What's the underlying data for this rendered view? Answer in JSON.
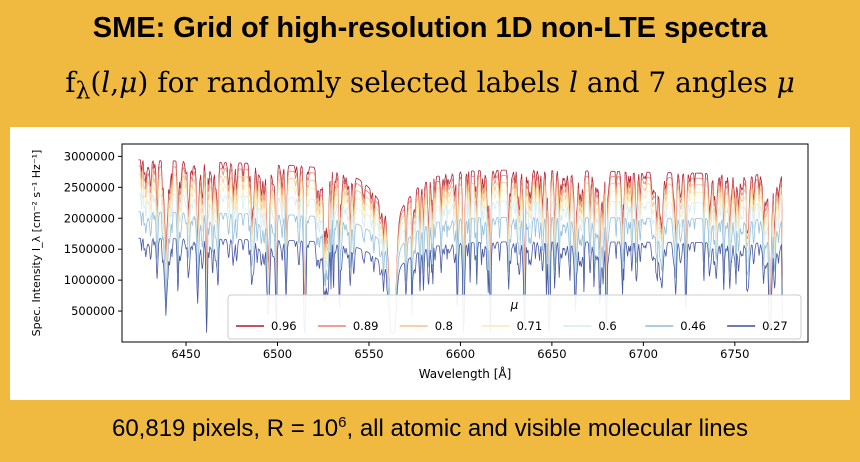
{
  "header": {
    "title": "SME: Grid of high-resolution 1D non-LTE spectra",
    "subtitle_f": "f",
    "subtitle_lambda": "λ",
    "subtitle_paren_open": "(",
    "subtitle_l": "l",
    "subtitle_comma": ",",
    "subtitle_mu": "μ",
    "subtitle_paren_close": ")",
    "subtitle_text1": " for randomly selected labels ",
    "subtitle_text2": " and 7 angles "
  },
  "footer": {
    "text_a": "60,819 pixels,  R = 10",
    "exponent": "6",
    "text_b": ", all atomic and visible molecular lines"
  },
  "chart_data": {
    "type": "line",
    "title": "",
    "xlabel": "Wavelength [Å]",
    "ylabel": "Spec. Intensity I_λ [cm⁻² s⁻¹ Hz⁻¹]",
    "xlim": [
      6415,
      6790
    ],
    "ylim": [
      0,
      3200000
    ],
    "xticks": [
      6450,
      6500,
      6550,
      6600,
      6650,
      6700,
      6750
    ],
    "yticks": [
      500000,
      1000000,
      1500000,
      2000000,
      2500000,
      3000000
    ],
    "ytick_labels": [
      "500000",
      "1000000",
      "1500000",
      "2000000",
      "2500000",
      "3000000"
    ],
    "legend": {
      "title": "μ",
      "placement": "lower-center"
    },
    "h_alpha_center": 6563,
    "series": [
      {
        "name": "0.96",
        "color": "#b2182b",
        "continuum_start": 2950000,
        "continuum_end": 2700000
      },
      {
        "name": "0.89",
        "color": "#e8806b",
        "continuum_start": 2850000,
        "continuum_end": 2620000
      },
      {
        "name": "0.8",
        "color": "#f6c48a",
        "continuum_start": 2720000,
        "continuum_end": 2520000
      },
      {
        "name": "0.71",
        "color": "#fbe9b4",
        "continuum_start": 2580000,
        "continuum_end": 2400000
      },
      {
        "name": "0.6",
        "color": "#d6eaf0",
        "continuum_start": 2400000,
        "continuum_end": 2230000
      },
      {
        "name": "0.46",
        "color": "#8fbcd9",
        "continuum_start": 2110000,
        "continuum_end": 1980000
      },
      {
        "name": "0.27",
        "color": "#3e4f9d",
        "continuum_start": 1680000,
        "continuum_end": 1600000
      }
    ]
  }
}
